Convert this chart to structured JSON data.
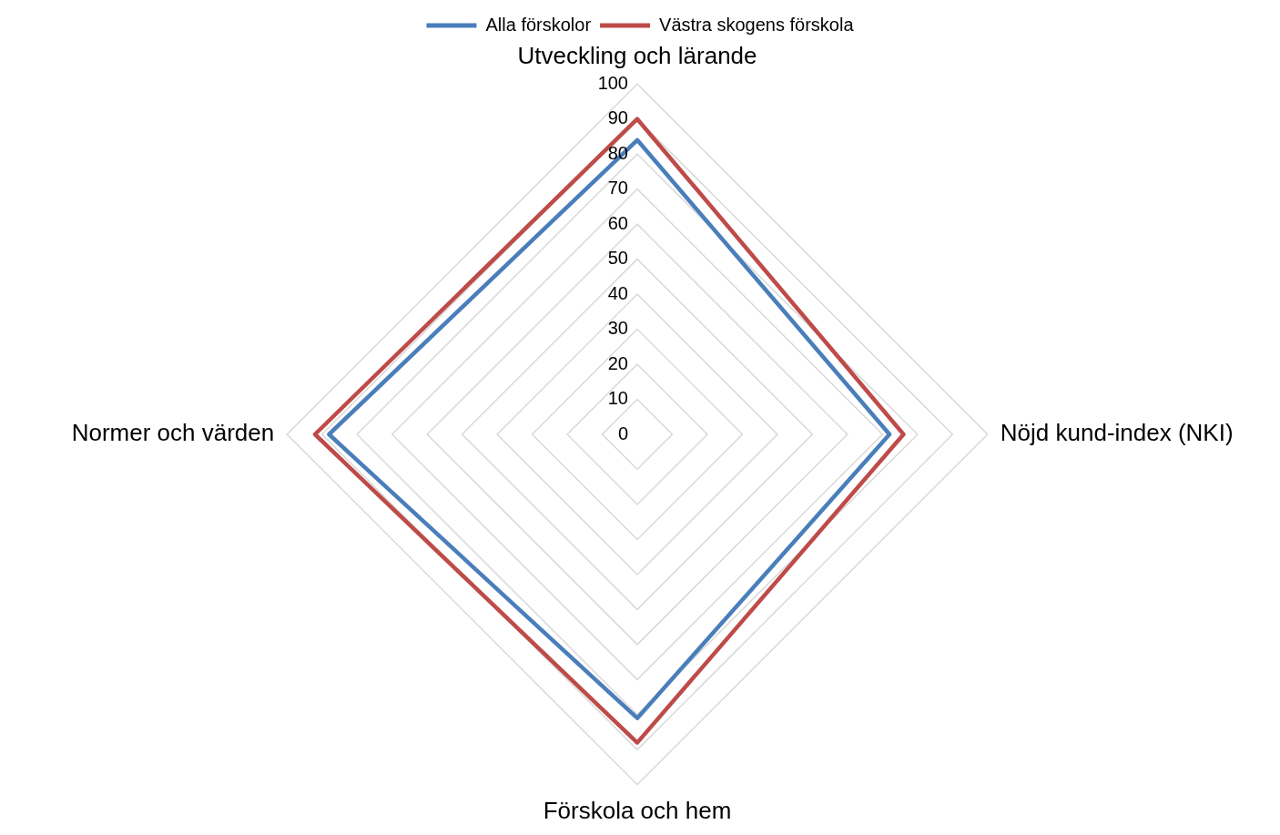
{
  "chart_data": {
    "type": "radar",
    "categories": [
      "Utveckling och lärande",
      "Nöjd kund-index (NKI)",
      "Förskola och hem",
      "Normer och värden"
    ],
    "series": [
      {
        "name": "Alla förskolor",
        "color": "#4a7ebb",
        "values": [
          84,
          72,
          81,
          88
        ]
      },
      {
        "name": "Västra skogens förskola",
        "color": "#be4b48",
        "values": [
          90,
          76,
          88,
          92
        ]
      }
    ],
    "ylim": [
      0,
      100
    ],
    "yticks": [
      0,
      10,
      20,
      30,
      40,
      50,
      60,
      70,
      80,
      90,
      100
    ],
    "grid": true,
    "legend": "top",
    "marker": "none",
    "line_style": "solid"
  }
}
